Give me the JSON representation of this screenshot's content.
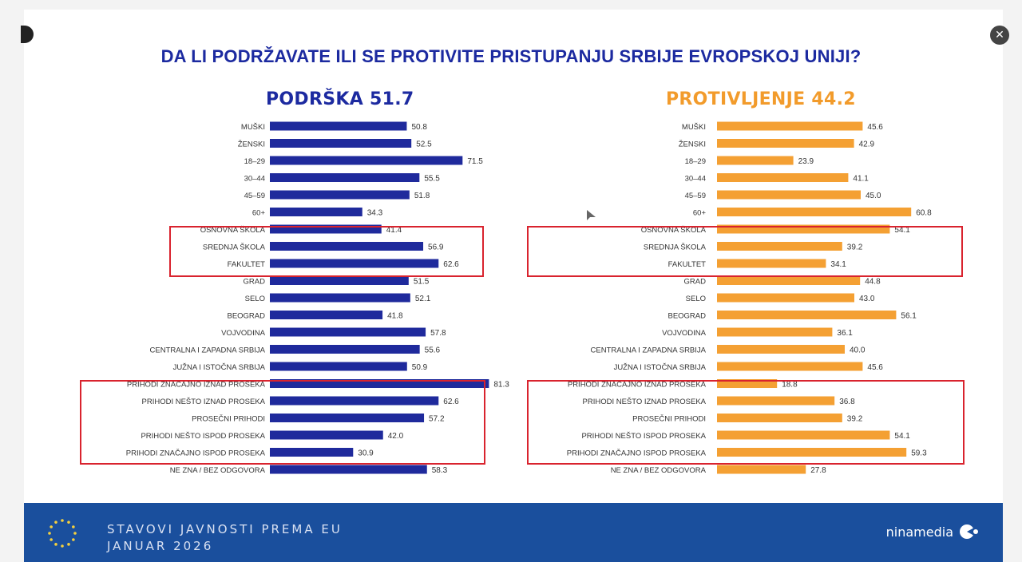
{
  "title": "DA LI PODRŽAVATE ILI SE PROTIVITE PRISTUPANJU SRBIJE EVROPSKOJ UNIJI?",
  "footer": {
    "line1": "STAVOVI JAVNOSTI PREMA EU",
    "line2": "JANUAR 2026",
    "brand": "ninamedia"
  },
  "colors": {
    "support": "#1f2a9c",
    "oppose": "#f4a033",
    "highlight": "#d9232e",
    "title": "#1c2aa0",
    "footer_bg": "#1a4f9d"
  },
  "chart_data": [
    {
      "type": "bar",
      "orientation": "horizontal",
      "title": "PODRŠKA 51.7",
      "color": "#1f2a9c",
      "categories": [
        "MUŠKI",
        "ŽENSKI",
        "18–29",
        "30–44",
        "45–59",
        "60+",
        "OSNOVNA ŠKOLA",
        "SREDNJA ŠKOLA",
        "FAKULTET",
        "GRAD",
        "SELO",
        "BEOGRAD",
        "VOJVODINA",
        "CENTRALNA I ZAPADNA SRBIJA",
        "JUŽNA I ISTOČNA SRBIJA",
        "PRIHODI ZNAČAJNO IZNAD PROSEKA",
        "PRIHODI NEŠTO IZNAD PROSEKA",
        "PROSEČNI PRIHODI",
        "PRIHODI NEŠTO ISPOD PROSEKA",
        "PRIHODI ZNAČAJNO ISPOD PROSEKA",
        "NE ZNA / BEZ ODGOVORA"
      ],
      "values": [
        50.8,
        52.5,
        71.5,
        55.5,
        51.8,
        34.3,
        41.4,
        56.9,
        62.6,
        51.5,
        52.1,
        41.8,
        57.8,
        55.6,
        50.9,
        81.3,
        62.6,
        57.2,
        42.0,
        30.9,
        58.3
      ],
      "value_labels": [
        "50.8",
        "52.5",
        "71.5",
        "55.5",
        "51.8",
        "34.3",
        "41.4",
        "56.9",
        "62.6",
        "51.5",
        "52.1",
        "41.8",
        "57.8",
        "55.6",
        "50.9",
        "81.3",
        "62.6",
        "57.2",
        "42.0",
        "30.9",
        "58.3"
      ],
      "highlighted_groups": [
        [
          "OSNOVNA ŠKOLA",
          "FAKULTET"
        ],
        [
          "PRIHODI ZNAČAJNO IZNAD PROSEKA",
          "PRIHODI ZNAČAJNO ISPOD PROSEKA"
        ]
      ]
    },
    {
      "type": "bar",
      "orientation": "horizontal",
      "title": "PROTIVLJENJE 44.2",
      "color": "#f4a033",
      "categories": [
        "MUŠKI",
        "ŽENSKI",
        "18–29",
        "30–44",
        "45–59",
        "60+",
        "OSNOVNA ŠKOLA",
        "SREDNJA ŠKOLA",
        "FAKULTET",
        "GRAD",
        "SELO",
        "BEOGRAD",
        "VOJVODINA",
        "CENTRALNA I ZAPADNA SRBIJA",
        "JUŽNA I ISTOČNA SRBIJA",
        "PRIHODI ZNAČAJNO IZNAD PROSEKA",
        "PRIHODI NEŠTO IZNAD PROSEKA",
        "PROSEČNI PRIHODI",
        "PRIHODI NEŠTO ISPOD PROSEKA",
        "PRIHODI ZNAČAJNO ISPOD PROSEKA",
        "NE ZNA / BEZ ODGOVORA"
      ],
      "values": [
        45.6,
        42.9,
        23.9,
        41.1,
        45.0,
        60.8,
        54.1,
        39.2,
        34.1,
        44.8,
        43.0,
        56.1,
        36.1,
        40.0,
        45.6,
        18.8,
        36.8,
        39.2,
        54.1,
        59.3,
        27.8
      ],
      "value_labels": [
        "45.6",
        "42.9",
        "23.9",
        "41.1",
        "45.0",
        "60.8",
        "54.1",
        "39.2",
        "34.1",
        "44.8",
        "43.0",
        "56.1",
        "36.1",
        "40.0",
        "45.6",
        "18.8",
        "36.8",
        "39.2",
        "54.1",
        "59.3",
        "27.8"
      ],
      "highlighted_groups": [
        [
          "OSNOVNA ŠKOLA",
          "FAKULTET"
        ],
        [
          "PRIHODI ZNAČAJNO IZNAD PROSEKA",
          "PRIHODI ZNAČAJNO ISPOD PROSEKA"
        ]
      ]
    }
  ]
}
